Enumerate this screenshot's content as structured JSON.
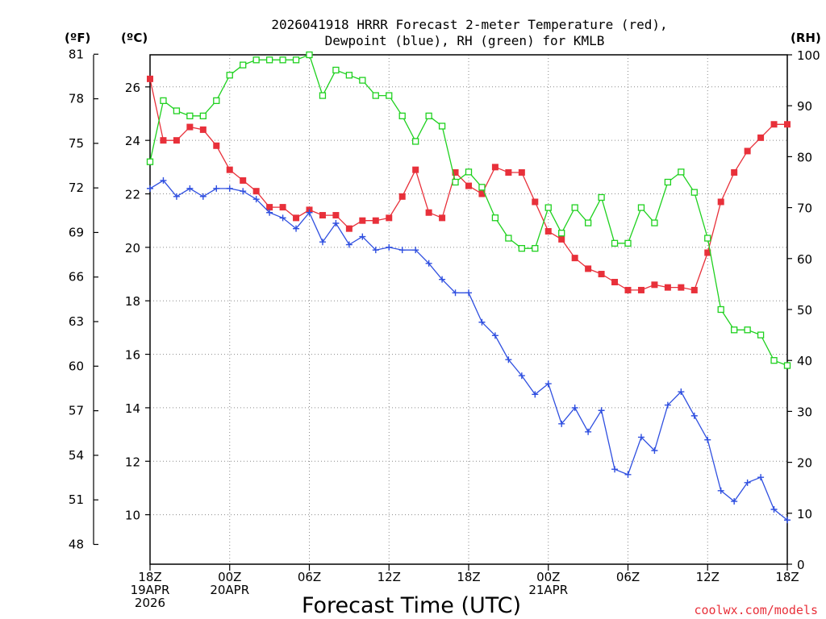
{
  "title_lines": [
    "2026041918 HRRR Forecast 2-meter Temperature (red),",
    "Dewpoint (blue), RH (green) for KMLB"
  ],
  "axis_units": {
    "fahrenheit": "(ºF)",
    "celsius": "(ºC)",
    "rh": "(RH)"
  },
  "xlabel": "Forecast Time (UTC)",
  "credit": "coolwx.com/models",
  "colors": {
    "temperature": "#e8303a",
    "dewpoint": "#2f4fe0",
    "rh": "#1fd11f",
    "axis": "#000000",
    "grid": "#8a8a8a"
  },
  "chart_data": {
    "type": "line",
    "title": "2026041918 HRRR Forecast 2-meter Temperature (red), Dewpoint (blue), RH (green) for KMLB",
    "xlabel": "Forecast Time (UTC)",
    "x_hours": [
      0,
      1,
      2,
      3,
      4,
      5,
      6,
      7,
      8,
      9,
      10,
      11,
      12,
      13,
      14,
      15,
      16,
      17,
      18,
      19,
      20,
      21,
      22,
      23,
      24,
      25,
      26,
      27,
      28,
      29,
      30,
      31,
      32,
      33,
      34,
      35,
      36,
      37,
      38,
      39,
      40,
      41,
      42,
      43,
      44,
      45,
      46,
      47,
      48
    ],
    "x_ticks": [
      {
        "hour": 0,
        "lines": [
          "18Z",
          "19APR",
          "2026"
        ]
      },
      {
        "hour": 6,
        "lines": [
          "00Z",
          "20APR"
        ]
      },
      {
        "hour": 12,
        "lines": [
          "06Z"
        ]
      },
      {
        "hour": 18,
        "lines": [
          "12Z"
        ]
      },
      {
        "hour": 24,
        "lines": [
          "18Z"
        ]
      },
      {
        "hour": 30,
        "lines": [
          "00Z",
          "21APR"
        ]
      },
      {
        "hour": 36,
        "lines": [
          "06Z"
        ]
      },
      {
        "hour": 42,
        "lines": [
          "12Z"
        ]
      },
      {
        "hour": 48,
        "lines": [
          "18Z"
        ]
      }
    ],
    "xlim": [
      0,
      48
    ],
    "y_celsius_lim": [
      8.15,
      27.2
    ],
    "y_celsius_ticks": [
      "10",
      "12",
      "14",
      "16",
      "18",
      "20",
      "22",
      "24",
      "26"
    ],
    "y_fahrenheit_ticks": [
      "48",
      "51",
      "54",
      "57",
      "60",
      "63",
      "66",
      "69",
      "72",
      "75",
      "78",
      "81"
    ],
    "y_rh_lim": [
      0,
      100
    ],
    "y_rh_ticks": [
      "0",
      "10",
      "20",
      "30",
      "40",
      "50",
      "60",
      "70",
      "80",
      "90",
      "100"
    ],
    "series": [
      {
        "name": "Temperature",
        "units": "C",
        "marker": "filled-square",
        "color": "#e8303a",
        "values": [
          26.3,
          24.0,
          24.0,
          24.5,
          24.4,
          23.8,
          22.9,
          22.5,
          22.1,
          21.5,
          21.5,
          21.1,
          21.4,
          21.2,
          21.2,
          20.7,
          21.0,
          21.0,
          21.1,
          21.9,
          22.9,
          21.3,
          21.1,
          22.8,
          22.3,
          22.0,
          23.0,
          22.8,
          22.8,
          21.7,
          20.6,
          20.3,
          19.6,
          19.2,
          19.0,
          18.7,
          18.4,
          18.4,
          18.6,
          18.5,
          18.5,
          18.4,
          19.8,
          21.7,
          22.8,
          23.6,
          24.1,
          24.6,
          24.6
        ]
      },
      {
        "name": "Dewpoint",
        "units": "C",
        "marker": "plus",
        "color": "#2f4fe0",
        "values": [
          22.2,
          22.5,
          21.9,
          22.2,
          21.9,
          22.2,
          22.2,
          22.1,
          21.8,
          21.3,
          21.1,
          20.7,
          21.3,
          20.2,
          20.9,
          20.1,
          20.4,
          19.9,
          20.0,
          19.9,
          19.9,
          19.4,
          18.8,
          18.3,
          18.3,
          17.2,
          16.7,
          15.8,
          15.2,
          14.5,
          14.9,
          13.4,
          14.0,
          13.1,
          13.9,
          11.7,
          11.5,
          12.9,
          12.4,
          14.1,
          14.6,
          13.7,
          12.8,
          10.9,
          10.5,
          11.2,
          11.4,
          10.2,
          9.8
        ]
      },
      {
        "name": "RH",
        "units": "%",
        "marker": "open-square",
        "color": "#1fd11f",
        "values": [
          79,
          91,
          89,
          88,
          88,
          91,
          96,
          98,
          99,
          99,
          99,
          99,
          100,
          92,
          97,
          96,
          95,
          92,
          92,
          88,
          83,
          88,
          86,
          75,
          77,
          74,
          68,
          64,
          62,
          62,
          70,
          65,
          70,
          67,
          72,
          63,
          63,
          70,
          67,
          75,
          77,
          73,
          64,
          50,
          46,
          46,
          45,
          40,
          39
        ]
      }
    ]
  }
}
